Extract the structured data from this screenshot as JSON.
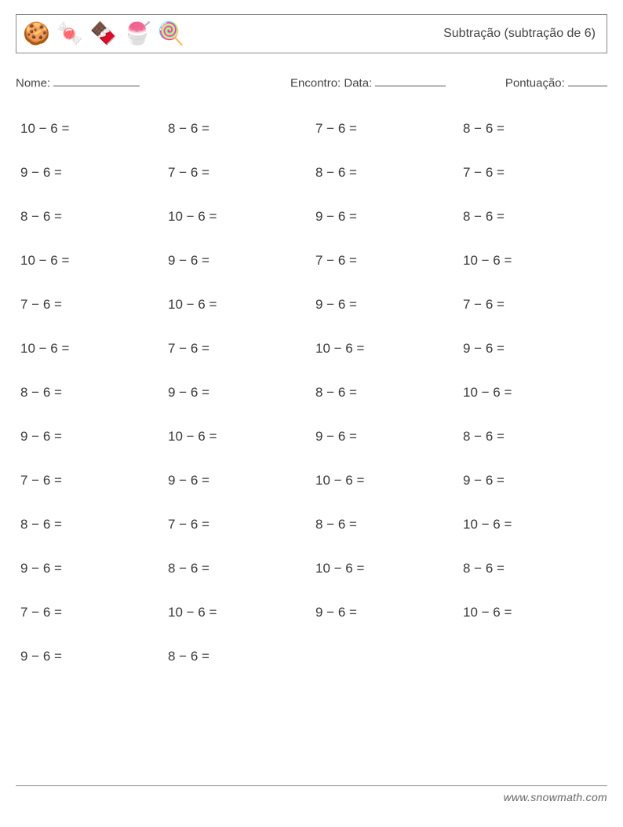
{
  "header": {
    "icons": [
      "🍪",
      "🍬",
      "🍫",
      "🍧",
      "🍭"
    ],
    "title": "Subtração (subtração de 6)"
  },
  "info": {
    "name_label": "Nome:",
    "encounter_label": "Encontro: Data:",
    "score_label": "Pontuação:"
  },
  "layout": {
    "columns": 4,
    "rows": 13,
    "font_size_problem": 17,
    "text_color": "#3a3a3a",
    "border_color": "#888888",
    "background_color": "#ffffff"
  },
  "problems": [
    "10 − 6 =",
    "8 − 6 =",
    "7 − 6 =",
    "8 − 6 =",
    "9 − 6 =",
    "7 − 6 =",
    "8 − 6 =",
    "7 − 6 =",
    "8 − 6 =",
    "10 − 6 =",
    "9 − 6 =",
    "8 − 6 =",
    "10 − 6 =",
    "9 − 6 =",
    "7 − 6 =",
    "10 − 6 =",
    "7 − 6 =",
    "10 − 6 =",
    "9 − 6 =",
    "7 − 6 =",
    "10 − 6 =",
    "7 − 6 =",
    "10 − 6 =",
    "9 − 6 =",
    "8 − 6 =",
    "9 − 6 =",
    "8 − 6 =",
    "10 − 6 =",
    "9 − 6 =",
    "10 − 6 =",
    "9 − 6 =",
    "8 − 6 =",
    "7 − 6 =",
    "9 − 6 =",
    "10 − 6 =",
    "9 − 6 =",
    "8 − 6 =",
    "7 − 6 =",
    "8 − 6 =",
    "10 − 6 =",
    "9 − 6 =",
    "8 − 6 =",
    "10 − 6 =",
    "8 − 6 =",
    "7 − 6 =",
    "10 − 6 =",
    "9 − 6 =",
    "10 − 6 =",
    "9 − 6 =",
    "8 − 6 =",
    "",
    ""
  ],
  "footer": {
    "site": "www.snowmath.com"
  }
}
